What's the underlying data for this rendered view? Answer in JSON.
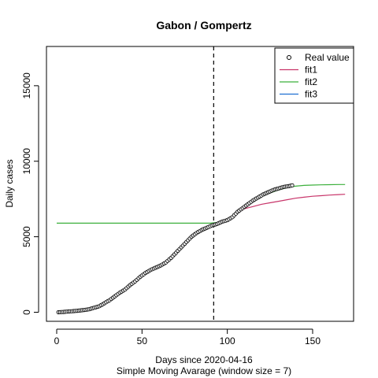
{
  "chart_data": {
    "type": "line",
    "title": "Gabon / Gompertz",
    "xlabel": "Days since 2020-04-16",
    "xlabel2": "Simple Moving Avarage (window size = 7)",
    "ylabel": "Daily cases",
    "xlim": [
      -6,
      174
    ],
    "ylim": [
      -600,
      17600
    ],
    "x_ticks": [
      0,
      50,
      100,
      150
    ],
    "y_ticks": [
      0,
      5000,
      10000,
      15000
    ],
    "vline_x": 92,
    "legend": {
      "position": "top-right",
      "entries": [
        {
          "label": "Real value",
          "kind": "point",
          "color": "#000000"
        },
        {
          "label": "fit1",
          "kind": "line",
          "color": "#C8356A"
        },
        {
          "label": "fit2",
          "kind": "line",
          "color": "#3CB03C"
        },
        {
          "label": "fit3",
          "kind": "line",
          "color": "#1F6FD1"
        }
      ]
    },
    "real_value": {
      "x": [
        1,
        4,
        7,
        10,
        13,
        16,
        19,
        22,
        25,
        28,
        31,
        34,
        37,
        40,
        43,
        46,
        49,
        52,
        55,
        58,
        61,
        64,
        67,
        70,
        73,
        76,
        79,
        82,
        85,
        88,
        91,
        94,
        97,
        100,
        103,
        106,
        109,
        112,
        115,
        118,
        121,
        124,
        127,
        130,
        133,
        136,
        138
      ],
      "y": [
        0,
        20,
        50,
        80,
        110,
        150,
        200,
        300,
        400,
        600,
        800,
        1050,
        1300,
        1500,
        1800,
        2050,
        2350,
        2600,
        2800,
        2950,
        3100,
        3300,
        3600,
        3950,
        4300,
        4650,
        5000,
        5250,
        5450,
        5600,
        5750,
        5850,
        6000,
        6100,
        6300,
        6650,
        6900,
        7150,
        7400,
        7600,
        7800,
        7950,
        8100,
        8200,
        8300,
        8350,
        8400
      ]
    },
    "fit1": {
      "x": [
        100,
        105,
        110,
        115,
        120,
        125,
        130,
        135,
        140,
        145,
        150,
        155,
        160,
        165,
        169
      ],
      "y": [
        6100,
        6500,
        6850,
        7000,
        7150,
        7250,
        7350,
        7450,
        7550,
        7620,
        7680,
        7720,
        7760,
        7790,
        7810
      ]
    },
    "fit2": {
      "x": [
        0,
        20,
        40,
        60,
        80,
        90,
        95,
        100,
        105,
        110,
        115,
        120,
        125,
        130,
        135,
        140,
        145,
        150,
        155,
        160,
        165,
        169
      ],
      "y": [
        5900,
        5900,
        5900,
        5900,
        5900,
        5900,
        5950,
        6150,
        6550,
        7000,
        7350,
        7650,
        7900,
        8100,
        8250,
        8350,
        8400,
        8420,
        8440,
        8450,
        8460,
        8460
      ]
    },
    "fit3": {
      "x": [],
      "y": []
    }
  }
}
